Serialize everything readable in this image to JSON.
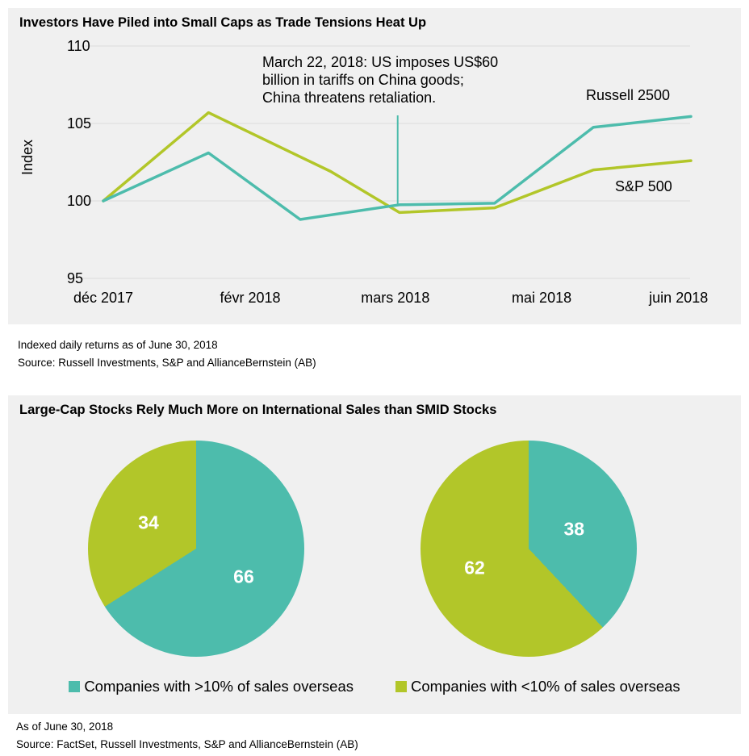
{
  "colors": {
    "teal": "#4DBCAC",
    "green": "#B2C629",
    "panel_background": "#F0F0F0",
    "gridline": "#DCDCDC",
    "pie_value_text": "#FFFFFF"
  },
  "chart_data": [
    {
      "type": "line",
      "title": "Investors Have Piled into Small Caps as Trade Tensions Heat Up",
      "ylabel": "Index",
      "ylim": [
        95,
        110
      ],
      "yticks": [
        95,
        100,
        105,
        110
      ],
      "grid": true,
      "xticks": [
        {
          "label": "déc 2017",
          "pos": 0.0
        },
        {
          "label": "févr 2018",
          "pos": 0.25
        },
        {
          "label": "mars 2018",
          "pos": 0.497
        },
        {
          "label": "mai 2018",
          "pos": 0.746
        },
        {
          "label": "juin 2018",
          "pos": 0.979
        }
      ],
      "series": [
        {
          "name": "Russell 2500",
          "color": "#4DBCAC",
          "points": [
            [
              0.0,
              100.0
            ],
            [
              0.179,
              103.1
            ],
            [
              0.335,
              98.8
            ],
            [
              0.504,
              99.75
            ],
            [
              0.666,
              99.85
            ],
            [
              0.834,
              104.75
            ],
            [
              1.0,
              105.45
            ]
          ]
        },
        {
          "name": "S&P 500",
          "color": "#B2C629",
          "points": [
            [
              0.0,
              100.0
            ],
            [
              0.179,
              105.7
            ],
            [
              0.387,
              101.9
            ],
            [
              0.504,
              99.25
            ],
            [
              0.666,
              99.55
            ],
            [
              0.834,
              102.0
            ],
            [
              1.0,
              102.6
            ]
          ]
        }
      ],
      "annotation": {
        "lines": [
          "March 22, 2018: US imposes US$60",
          "billion in tariffs on China goods;",
          "China threatens retaliation."
        ],
        "line_pos": 0.501
      },
      "footnotes": [
        "Indexed daily returns as of June 30, 2018",
        "Source: Russell Investments, S&P and AllianceBernstein (AB)"
      ]
    },
    {
      "type": "pie",
      "title": "Large-Cap Stocks Rely Much More on International Sales than SMID Stocks",
      "pies": [
        {
          "slices": [
            {
              "value": 66,
              "color": "#4DBCAC"
            },
            {
              "value": 34,
              "color": "#B2C629"
            }
          ]
        },
        {
          "slices": [
            {
              "value": 38,
              "color": "#4DBCAC"
            },
            {
              "value": 62,
              "color": "#B2C629"
            }
          ]
        }
      ],
      "legend": [
        {
          "label": "Companies with >10% of sales overseas",
          "color": "#4DBCAC"
        },
        {
          "label": "Companies with <10% of sales overseas",
          "color": "#B2C629"
        }
      ],
      "footnotes": [
        "As of June 30, 2018",
        "Source: FactSet, Russell Investments, S&P and AllianceBernstein (AB)"
      ]
    }
  ]
}
